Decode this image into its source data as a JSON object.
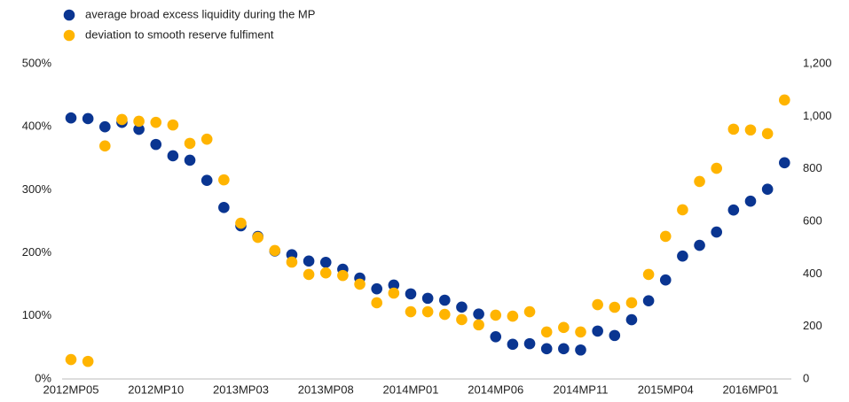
{
  "chart_data": {
    "type": "scatter",
    "categories": [
      "2012MP05",
      null,
      null,
      null,
      null,
      "2012MP10",
      null,
      null,
      null,
      null,
      "2013MP03",
      null,
      null,
      null,
      null,
      "2013MP08",
      null,
      null,
      null,
      null,
      "2014MP01",
      null,
      null,
      null,
      null,
      "2014MP06",
      null,
      null,
      null,
      null,
      "2014MP11",
      null,
      null,
      null,
      null,
      "2015MP04",
      null,
      null,
      null,
      null,
      "2016MP01",
      null,
      null
    ],
    "series": [
      {
        "name": "average broad excess liquidity during the MP",
        "color": "#0a3591",
        "axis": "y",
        "values": [
          414,
          413,
          400,
          407,
          396,
          372,
          354,
          347,
          315,
          272,
          243,
          226,
          203,
          197,
          187,
          185,
          174,
          160,
          143,
          149,
          135,
          128,
          125,
          114,
          103,
          67,
          55,
          56,
          48,
          48,
          46,
          76,
          69,
          94,
          124,
          157,
          195,
          212,
          233,
          268,
          282,
          301,
          343
        ]
      },
      {
        "name": "deviation to smooth reserve fulfiment",
        "color": "#ffb400",
        "axis": "y2",
        "values": [
          74,
          67,
          887,
          988,
          981,
          977,
          967,
          897,
          913,
          758,
          593,
          539,
          489,
          445,
          398,
          404,
          394,
          361,
          290,
          327,
          256,
          256,
          246,
          226,
          206,
          243,
          239,
          256,
          179,
          196,
          179,
          283,
          273,
          290,
          398,
          543,
          644,
          752,
          802,
          951,
          948,
          934,
          1062
        ]
      }
    ],
    "ylim": [
      0,
      500
    ],
    "yticks": [
      {
        "value": 0,
        "label": "0%"
      },
      {
        "value": 100,
        "label": "100%"
      },
      {
        "value": 200,
        "label": "200%"
      },
      {
        "value": 300,
        "label": "300%"
      },
      {
        "value": 400,
        "label": "400%"
      },
      {
        "value": 500,
        "label": "500%"
      }
    ],
    "y2lim": [
      0,
      1200
    ],
    "y2ticks": [
      0,
      200,
      400,
      600,
      800,
      {
        "value": 1000,
        "label": "1,000"
      },
      {
        "value": 1200,
        "label": "1,200"
      }
    ],
    "grid": false,
    "legend": "top-left"
  }
}
